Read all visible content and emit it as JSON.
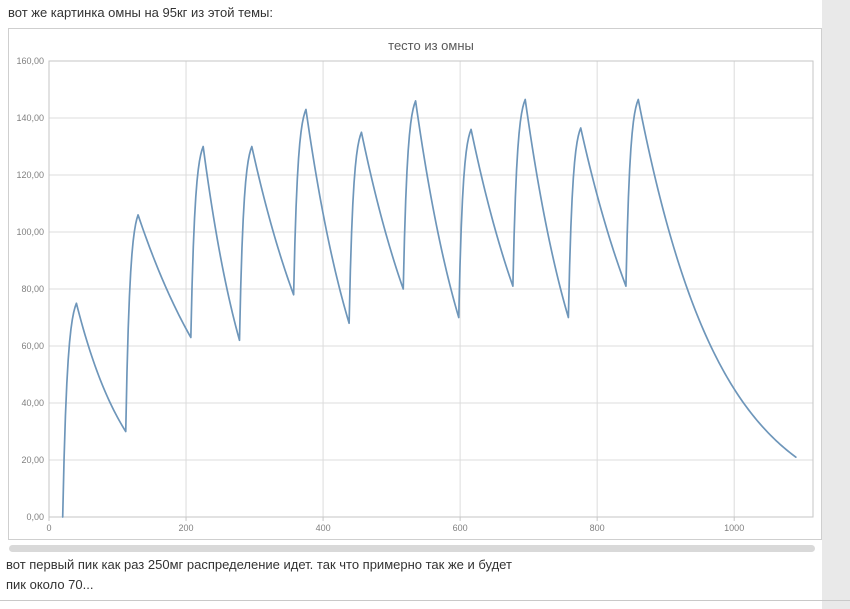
{
  "post": {
    "intro": "вот же картинка омны на 95кг из этой темы:",
    "outro_line1": "вот первый пик как раз 250мг распределение идет. так что примерно так же и будет",
    "outro_line2": "пик около 70..."
  },
  "theme": {
    "page_background": "#e9e9e9",
    "content_background": "#ffffff",
    "text_color": "#333333",
    "divider_color": "#c9c9c9",
    "scrollbar_color": "#d9d9d9"
  },
  "chart_data": {
    "type": "line",
    "title": "тесто из омны",
    "title_color": "#595959",
    "line_color": "#6e96ba",
    "grid_color": "#dcdcdc",
    "border_color": "#c6c6c6",
    "tick_label_color": "#808080",
    "x_range": [
      0,
      1115
    ],
    "y_range": [
      0,
      160
    ],
    "x_ticks": [
      0,
      200,
      400,
      600,
      800,
      1000
    ],
    "x_tick_labels": [
      "0",
      "200",
      "400",
      "600",
      "800",
      "1000"
    ],
    "y_ticks": [
      0,
      20,
      40,
      60,
      80,
      100,
      120,
      140,
      160
    ],
    "y_tick_labels": [
      "0,00",
      "20,00",
      "40,00",
      "60,00",
      "80,00",
      "100,00",
      "120,00",
      "140,00",
      "160,00"
    ],
    "grid": true,
    "legend": "none",
    "series": [
      {
        "name": "тесто из омны",
        "shape": "repeated-dose-pharmacokinetic-curve",
        "segment_pattern": "alternating exponential rise / exponential decay, starting with rise",
        "keypoints": [
          [
            20,
            0
          ],
          [
            40,
            75
          ],
          [
            112,
            30
          ],
          [
            130,
            106
          ],
          [
            207,
            63
          ],
          [
            225,
            130
          ],
          [
            278,
            62
          ],
          [
            296,
            130
          ],
          [
            357,
            78
          ],
          [
            375,
            143
          ],
          [
            438,
            68
          ],
          [
            456,
            135
          ],
          [
            517,
            80
          ],
          [
            535,
            146
          ],
          [
            598,
            70
          ],
          [
            616,
            136
          ],
          [
            677,
            81
          ],
          [
            695,
            146.5
          ],
          [
            758,
            70
          ],
          [
            776,
            136.5
          ],
          [
            842,
            81
          ],
          [
            860,
            146.5
          ],
          [
            1090,
            21
          ]
        ]
      }
    ]
  }
}
